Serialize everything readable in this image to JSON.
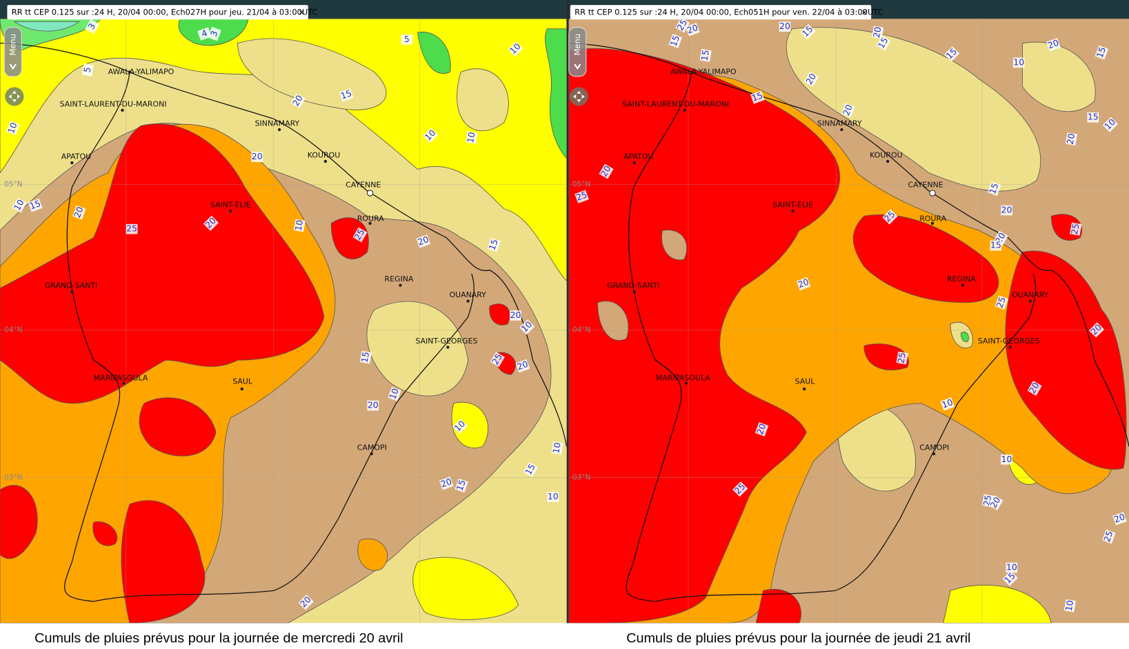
{
  "places": [
    "AWALA-YALIMAPO",
    "SAINT-LAURENT-DU-MARONI",
    "SINNAMARY",
    "APATOU",
    "KOUROU",
    "CAYENNE",
    "SAINT-ELIE",
    "ROURA",
    "GRAND-SANTI",
    "REGINA",
    "OUANARY",
    "SAINT-GEORGES",
    "MARIPASOULA",
    "SAUL",
    "CAMOPI"
  ],
  "grid_labels": [
    "05°N",
    "04°N",
    "03°N"
  ],
  "panels": [
    {
      "header": "RR tt CEP 0.125 sur :24 H, 20/04 00:00, Ech027H pour jeu. 21/04 à 03:00UTC",
      "menu": "Menu",
      "contour_labels": [
        "3",
        "4",
        "3",
        "5",
        "10",
        "5",
        "20",
        "15",
        "10",
        "20",
        "10",
        "10",
        "10",
        "15",
        "20",
        "25",
        "20",
        "10",
        "25",
        "20",
        "15",
        "20",
        "10",
        "15",
        "25",
        "20",
        "10",
        "20",
        "10",
        "10",
        "15",
        "20",
        "15",
        "10",
        "20"
      ],
      "caption": "Cumuls de pluies prévus pour la journée de mercredi 20 avril"
    },
    {
      "header": "RR tt CEP 0.125 sur :24 H, 20/04 00:00, Ech051H pour ven. 22/04 à 03:00UTC",
      "menu": "Menu",
      "contour_labels": [
        "25",
        "20",
        "15",
        "20",
        "15",
        "20",
        "15",
        "20",
        "15",
        "10",
        "15",
        "15",
        "20",
        "15",
        "20",
        "15",
        "10",
        "20",
        "20",
        "25",
        "15",
        "20",
        "25",
        "25",
        "20",
        "20",
        "25",
        "15",
        "20",
        "25",
        "20",
        "10",
        "20",
        "10",
        "25",
        "25",
        "20",
        "20",
        "25",
        "10",
        "15",
        "10"
      ],
      "caption": "Cumuls de pluies prévus pour la journée de jeudi 21 avril"
    }
  ]
}
